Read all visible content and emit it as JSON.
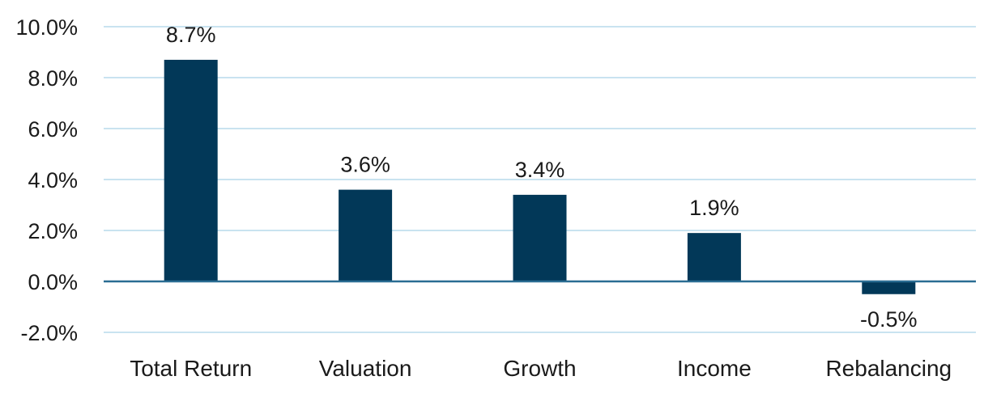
{
  "colors": {
    "bar": "#023858",
    "grid": "#c9e3f0",
    "zero_line": "#2a6d93",
    "text": "#1a1a1a"
  },
  "chart_data": {
    "type": "bar",
    "categories": [
      "Total Return",
      "Valuation",
      "Growth",
      "Income",
      "Rebalancing"
    ],
    "values": [
      8.7,
      3.6,
      3.4,
      1.9,
      -0.5
    ],
    "value_labels": [
      "8.7%",
      "3.6%",
      "3.4%",
      "1.9%",
      "-0.5%"
    ],
    "y_ticks": [
      10,
      8,
      6,
      4,
      2,
      0,
      -2
    ],
    "y_tick_labels": [
      "10.0%",
      "8.0%",
      "6.0%",
      "4.0%",
      "2.0%",
      "0.0%",
      "-2.0%"
    ],
    "ylim": [
      -2,
      10
    ],
    "grid": true,
    "legend": "none"
  }
}
